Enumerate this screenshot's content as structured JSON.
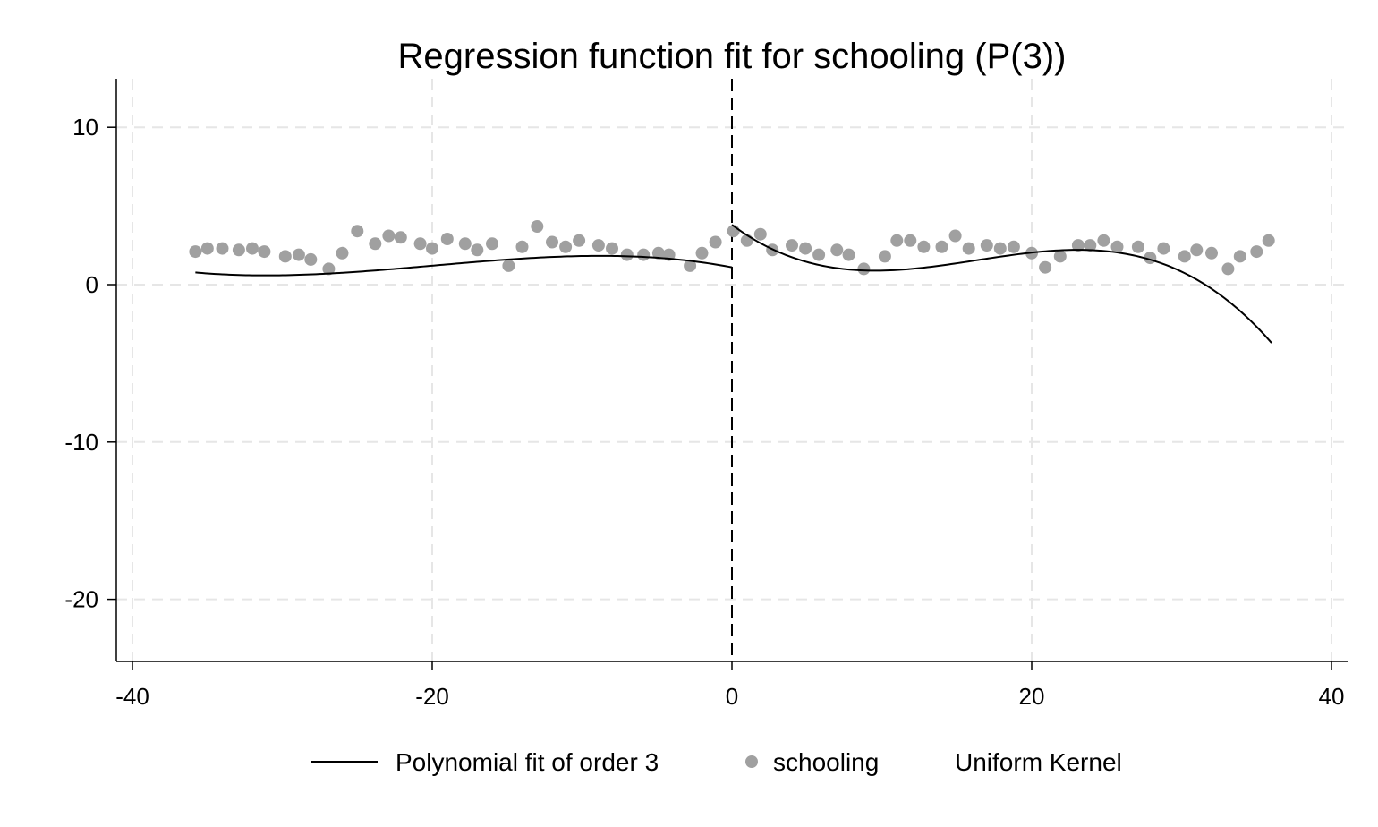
{
  "chart_data": {
    "type": "scatter",
    "title": "Regression function fit for schooling (P(3))",
    "xlabel": "",
    "ylabel": "",
    "xlim": [
      -41,
      41
    ],
    "ylim": [
      -24,
      13
    ],
    "x_ticks": [
      -40,
      -20,
      0,
      20,
      40
    ],
    "y_ticks": [
      10,
      0,
      -10,
      -20
    ],
    "x_tick_labels": [
      "-40",
      "-20",
      "0",
      "20",
      "40"
    ],
    "y_tick_labels": [
      "10",
      "0",
      "-10",
      "-20"
    ],
    "grid": true,
    "cutoff": 0,
    "legend_position": "bottom",
    "colors": {
      "fit": "#000000",
      "points": "#a0a0a0",
      "grid": "#e6e6e6"
    },
    "series": [
      {
        "name": "Polynomial fit of order 3",
        "kind": "line",
        "segments": [
          {
            "domain": [
              -35.8,
              0
            ],
            "coefficients": [
              1.1,
              -0.183,
              -0.01335,
              -0.000223
            ]
          },
          {
            "domain": [
              0,
              36
            ],
            "coefficients": [
              3.8,
              -0.707,
              0.0523,
              -0.001068
            ]
          }
        ]
      },
      {
        "name": "schooling",
        "kind": "points",
        "x": [
          -35.8,
          -35,
          -34,
          -32.9,
          -32,
          -31.2,
          -29.8,
          -28.9,
          -28.1,
          -26.9,
          -26,
          -25,
          -23.8,
          -22.9,
          -22.1,
          -20.8,
          -20,
          -19,
          -17.8,
          -17,
          -16,
          -14.9,
          -14,
          -13,
          -12,
          -11.1,
          -10.2,
          -8.9,
          -8,
          -7,
          -5.9,
          -4.9,
          -4.2,
          -2.8,
          -2,
          -1.1,
          0.1,
          1,
          1.9,
          2.7,
          4,
          4.9,
          5.8,
          7,
          7.8,
          8.8,
          10.2,
          11,
          11.9,
          12.8,
          14,
          14.9,
          15.8,
          17,
          17.9,
          18.8,
          20,
          20.9,
          21.9,
          23.1,
          23.9,
          24.8,
          25.7,
          27.1,
          27.9,
          28.8,
          30.2,
          31,
          32,
          33.1,
          33.9,
          35,
          35.8
        ],
        "y": [
          2.1,
          2.3,
          2.3,
          2.2,
          2.3,
          2.1,
          1.8,
          1.9,
          1.6,
          1,
          2,
          3.4,
          2.6,
          3.1,
          3,
          2.6,
          2.3,
          2.9,
          2.6,
          2.2,
          2.6,
          1.2,
          2.4,
          3.7,
          2.7,
          2.4,
          2.8,
          2.5,
          2.3,
          1.9,
          1.9,
          2,
          1.9,
          1.2,
          2,
          2.7,
          3.4,
          2.8,
          3.2,
          2.2,
          2.5,
          2.3,
          1.9,
          2.2,
          1.9,
          1,
          1.8,
          2.8,
          2.8,
          2.4,
          2.4,
          3.1,
          2.3,
          2.5,
          2.3,
          2.4,
          2,
          1.1,
          1.8,
          2.5,
          2.5,
          2.8,
          2.4,
          2.4,
          1.7,
          2.3,
          1.8,
          2.2,
          2,
          1,
          1.8,
          2.1,
          2.8
        ]
      }
    ]
  },
  "legend": {
    "fit_label": "Polynomial fit of order 3",
    "points_label": "schooling",
    "kernel_label": "Uniform Kernel"
  }
}
